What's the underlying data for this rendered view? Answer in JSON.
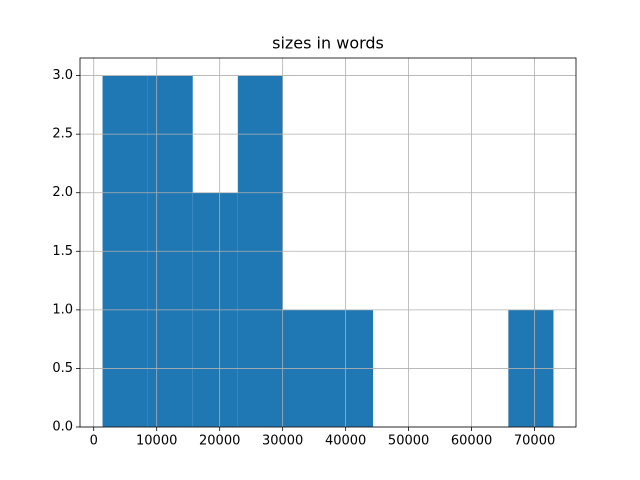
{
  "chart_data": {
    "type": "histogram",
    "title": "sizes in words",
    "bins": [
      1400,
      8560,
      15720,
      22880,
      30040,
      37200,
      44360,
      51520,
      58680,
      65840,
      73000
    ],
    "counts": [
      3,
      3,
      2,
      3,
      1,
      1,
      0,
      0,
      0,
      1
    ],
    "color": "#1f77b4",
    "xlim": [
      -2180,
      76580
    ],
    "xticks": [
      0,
      10000,
      20000,
      30000,
      40000,
      50000,
      60000,
      70000
    ],
    "ylim": [
      0,
      3.15
    ],
    "yticks": [
      {
        "value": 0,
        "label": "0.0"
      },
      0.5,
      {
        "value": 1,
        "label": "1.0"
      },
      1.5,
      {
        "value": 2,
        "label": "2.0"
      },
      2.5,
      {
        "value": 3,
        "label": "3.0"
      }
    ],
    "grid": true
  }
}
